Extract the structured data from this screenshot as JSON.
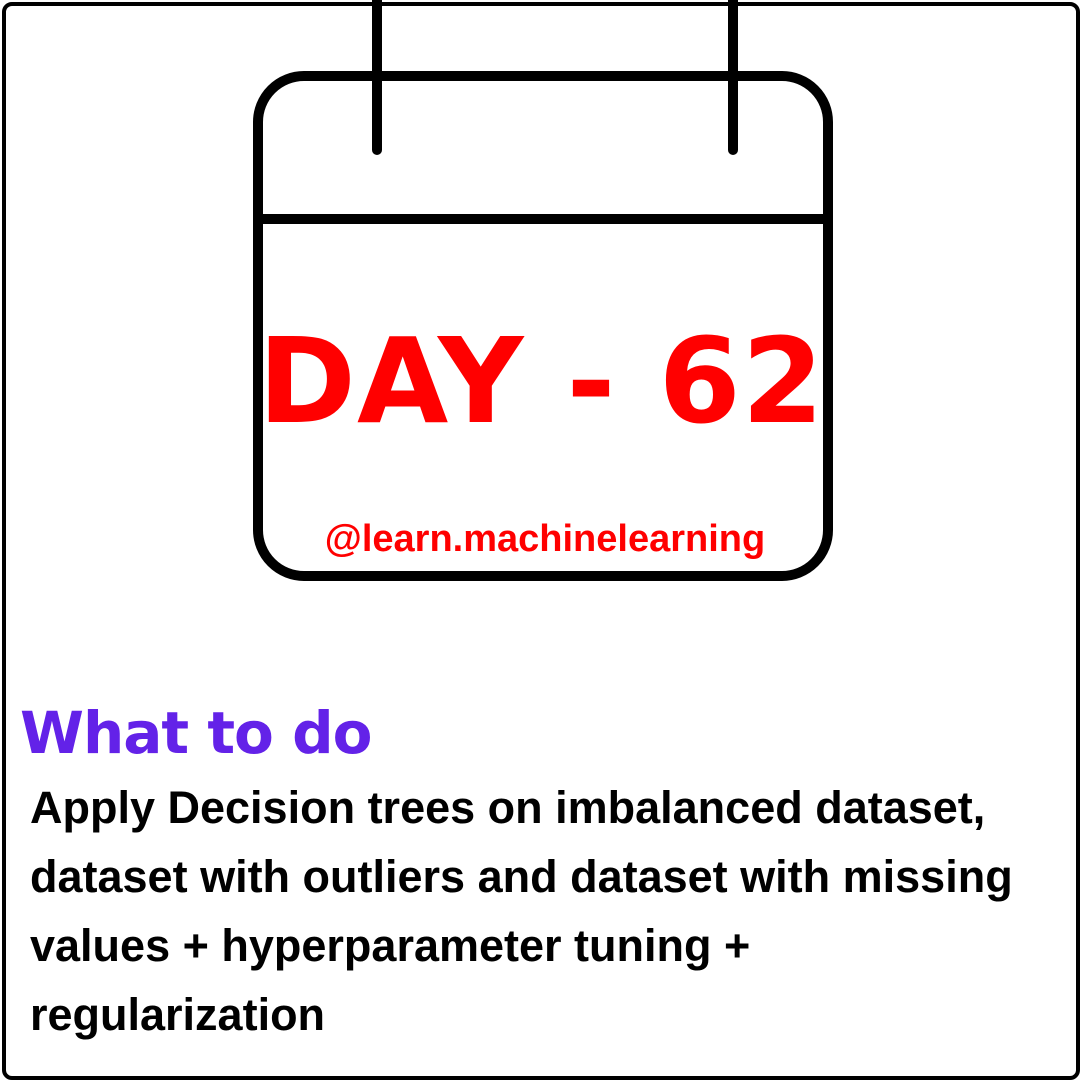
{
  "calendar": {
    "day_label": "DAY - 62",
    "handle": "@learn.machinelearning",
    "icon": "calendar-icon"
  },
  "section": {
    "heading": "What to do",
    "body": "Apply Decision trees on imbalanced dataset, dataset with outliers and dataset with missing values + hyperparameter tuning + regularization"
  },
  "colors": {
    "day_label": "#ff0000",
    "handle": "#ff0000",
    "heading": "#6322e8",
    "body_text": "#000000",
    "outline": "#000000",
    "background": "#ffffff"
  }
}
